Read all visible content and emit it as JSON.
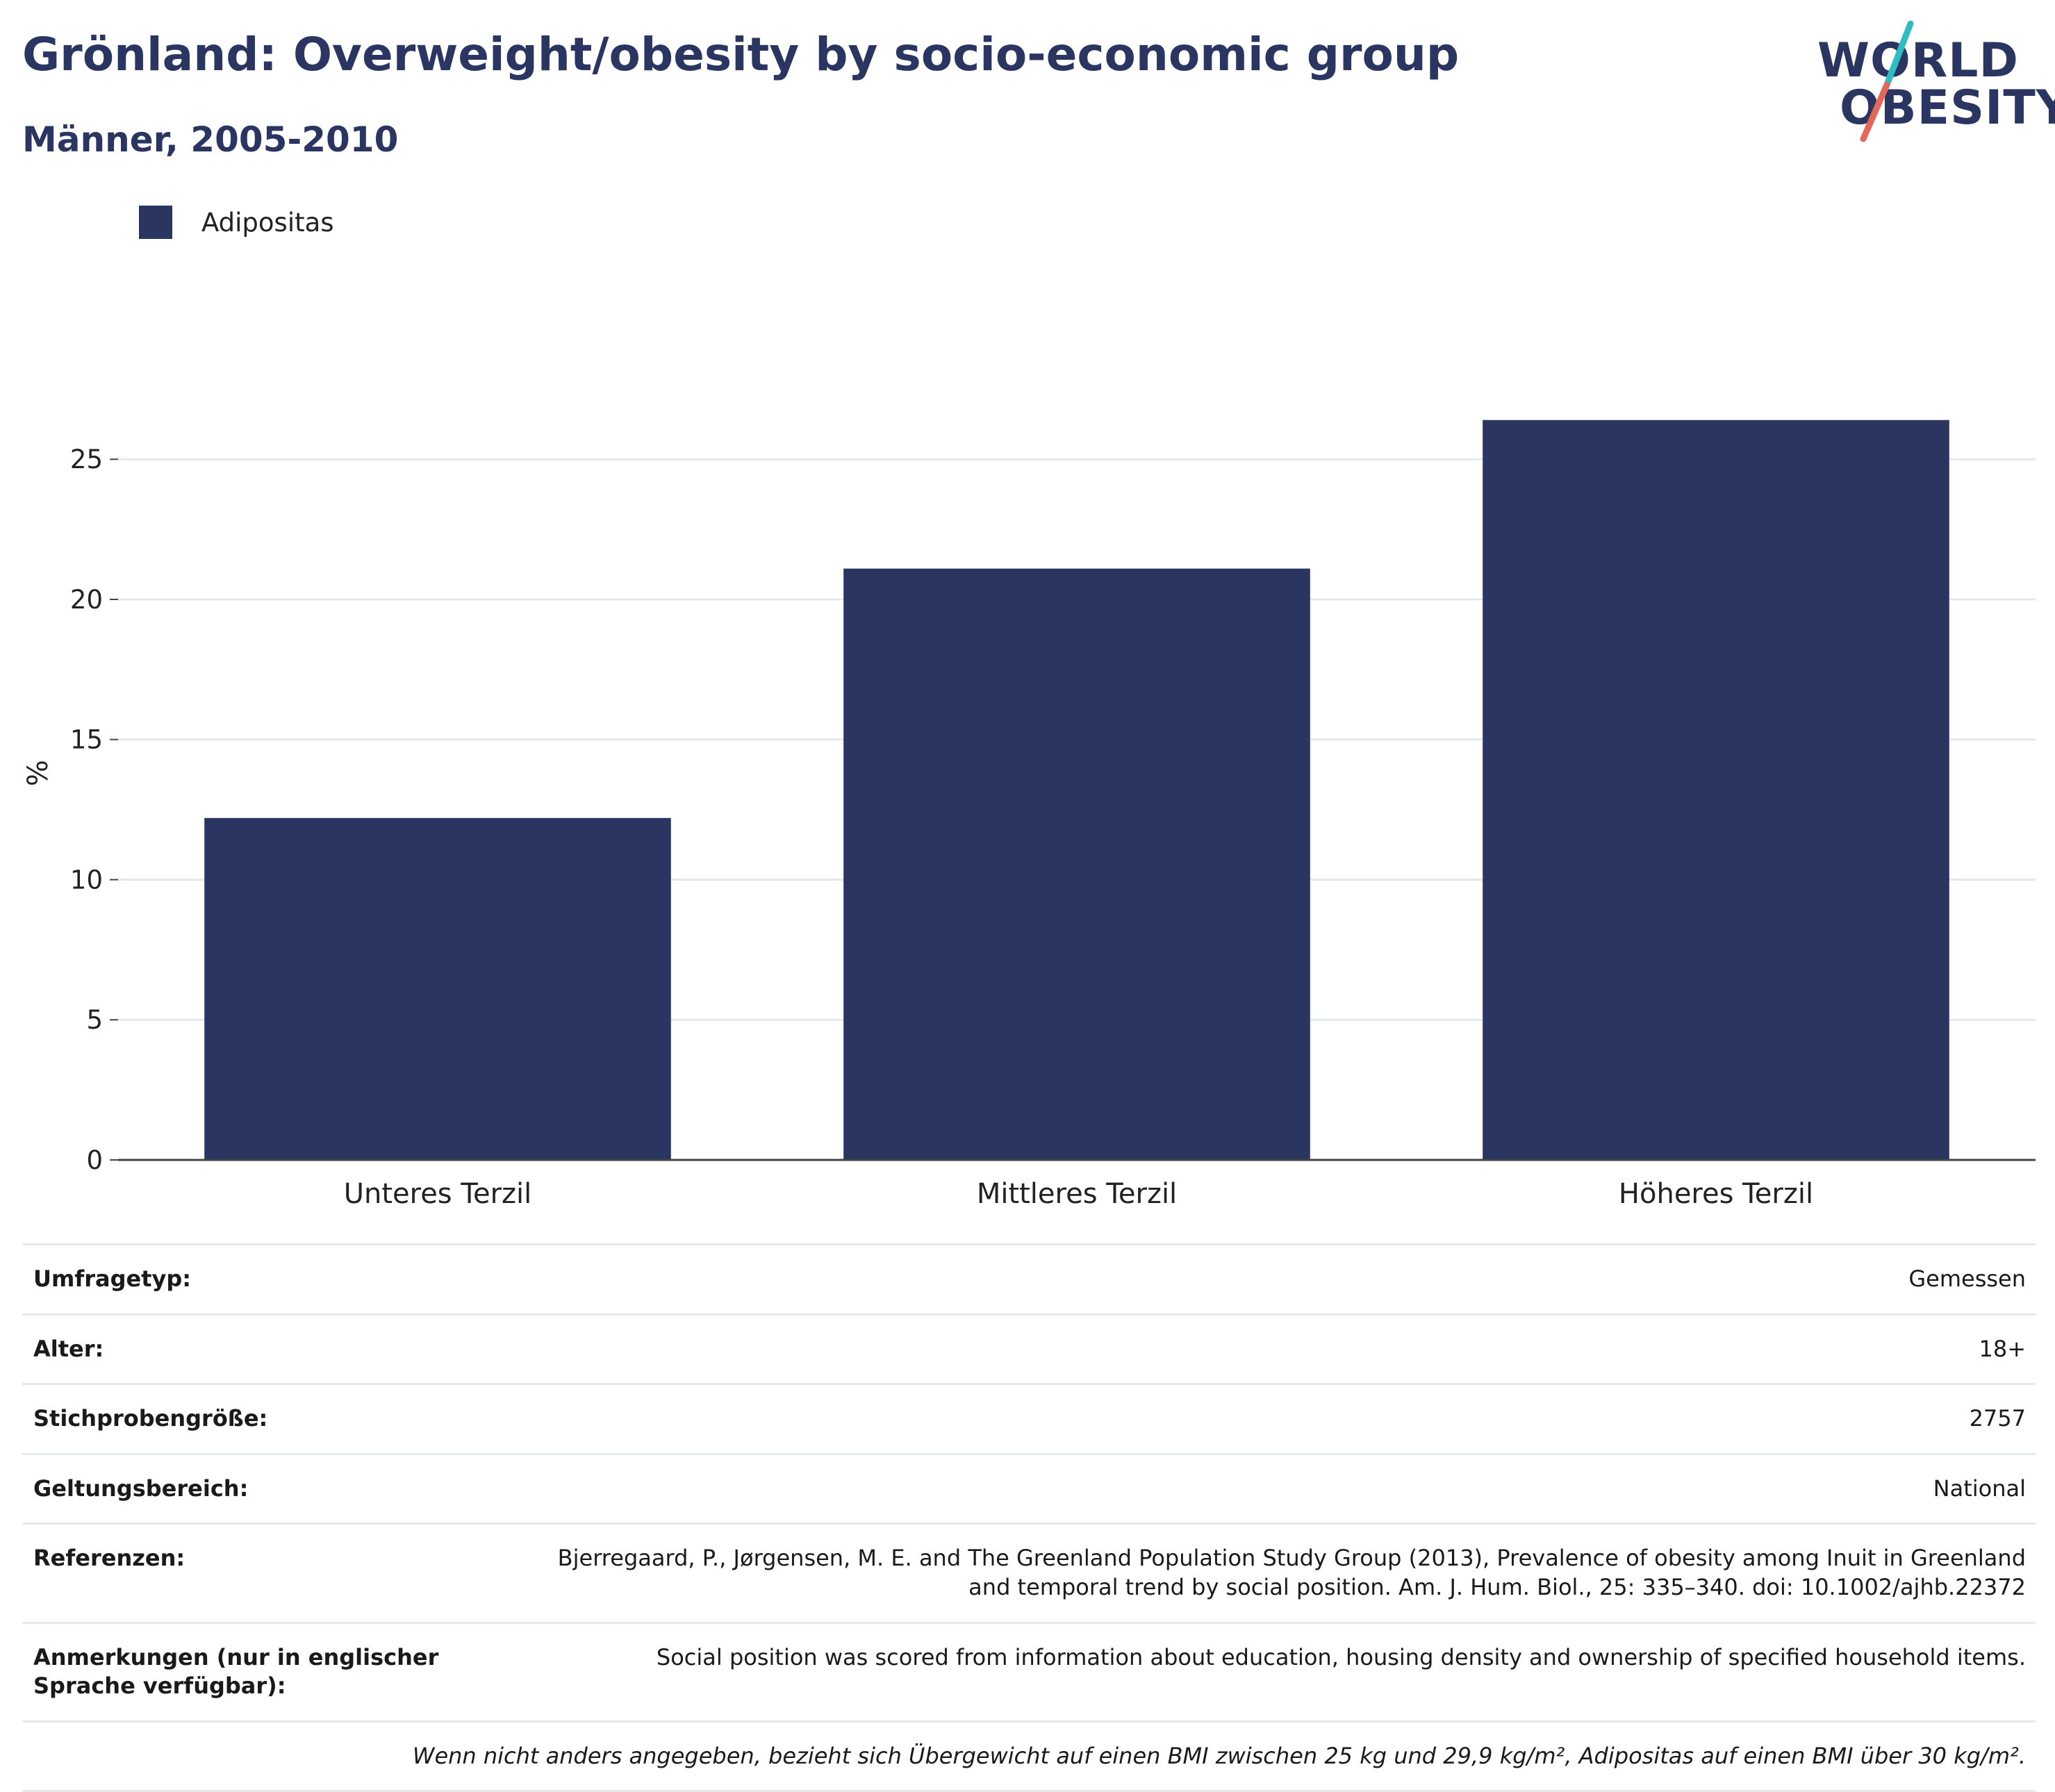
{
  "title": "Grönland: Overweight/obesity by socio-economic group",
  "subtitle": "Männer, 2005-2010",
  "logo": {
    "line1": "WORLD",
    "line2": "OBESITY",
    "slash_colors": [
      "#2ebdc3",
      "#e4685a"
    ]
  },
  "colors": {
    "bar": "#2a3562",
    "grid": "#e6e8ee",
    "axis": "#444444"
  },
  "chart_data": {
    "type": "bar",
    "categories": [
      "Unteres Terzil",
      "Mittleres Terzil",
      "Höheres Terzil"
    ],
    "series": [
      {
        "name": "Adipositas",
        "values": [
          12.2,
          21.1,
          26.4
        ]
      }
    ],
    "title": "Grönland: Overweight/obesity by socio-economic group",
    "subtitle": "Männer, 2005-2010",
    "xlabel": "",
    "ylabel": "%",
    "ylim": [
      0,
      28.5
    ],
    "yticks": [
      0,
      5,
      10,
      15,
      20,
      25
    ],
    "grid": true,
    "legend": "top-left"
  },
  "meta": {
    "rows": [
      {
        "key": "Umfragetyp:",
        "value": "Gemessen"
      },
      {
        "key": "Alter:",
        "value": "18+"
      },
      {
        "key": "Stichprobengröße:",
        "value": "2757"
      },
      {
        "key": "Geltungsbereich:",
        "value": "National"
      },
      {
        "key": "Referenzen:",
        "value": "Bjerregaard, P., Jørgensen, M. E. and The Greenland Population Study Group (2013), Prevalence of obesity among Inuit in Greenland and temporal trend by social position. Am. J. Hum. Biol., 25: 335–340. doi: 10.1002/ajhb.22372"
      },
      {
        "key": "Anmerkungen (nur in englischer Sprache verfügbar):",
        "value": "Social position was scored from information about education, housing density and ownership of specified household items."
      }
    ],
    "footnote": "Wenn nicht anders angegeben, bezieht sich Übergewicht auf einen BMI zwischen 25 kg und 29,9 kg/m², Adipositas auf einen BMI über 30 kg/m²."
  }
}
